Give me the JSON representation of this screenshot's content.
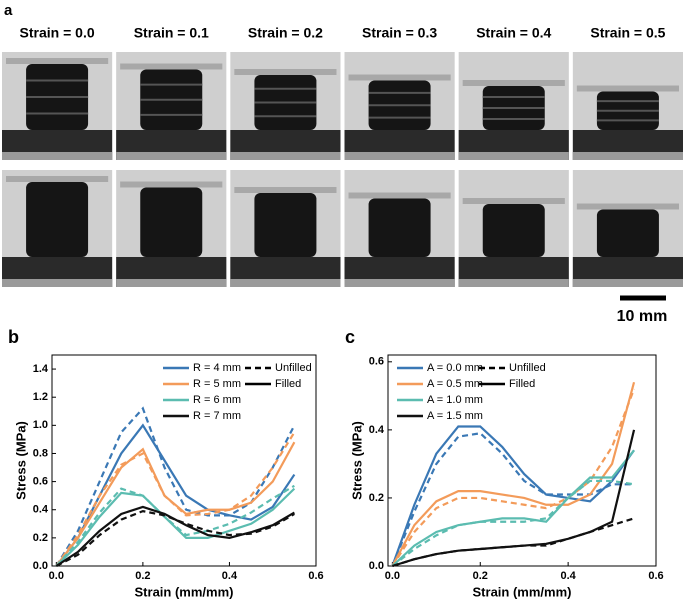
{
  "panel_a": {
    "label": "a",
    "strain_labels": [
      "Strain = 0.0",
      "Strain = 0.1",
      "Strain = 0.2",
      "Strain = 0.3",
      "Strain = 0.4",
      "Strain = 0.5"
    ],
    "scale_bar": "10 mm"
  },
  "chart_data": [
    {
      "type": "line",
      "panel_label": "b",
      "x_label": "Strain (mm/mm)",
      "y_label": "Stress (MPa)",
      "x": [
        0,
        0.05,
        0.1,
        0.15,
        0.2,
        0.25,
        0.3,
        0.35,
        0.4,
        0.45,
        0.5,
        0.55
      ],
      "xlim": [
        -0.01,
        0.6
      ],
      "ylim": [
        0,
        1.5
      ],
      "xticks": [
        {
          "value": 0,
          "label": "0.0"
        },
        0.2,
        0.4,
        0.6
      ],
      "yticks": [
        {
          "value": 0,
          "label": "0.0"
        },
        0.2,
        0.4,
        0.6,
        0.8,
        {
          "value": 1,
          "label": "1.0"
        },
        1.2,
        1.4
      ],
      "line_styles": [
        {
          "name": "Unfilled",
          "dashed": true
        },
        {
          "name": "Filled",
          "dashed": false
        }
      ],
      "series": [
        {
          "name": "R = 4 mm",
          "color": "#3a78b5",
          "values": [
            0,
            0.2,
            0.5,
            0.8,
            1.0,
            0.75,
            0.5,
            0.4,
            0.36,
            0.33,
            0.42,
            0.65
          ],
          "unfilled_values": [
            0,
            0.25,
            0.6,
            0.95,
            1.12,
            0.7,
            0.4,
            0.36,
            0.36,
            0.45,
            0.7,
            1.0
          ]
        },
        {
          "name": "R = 5 mm",
          "color": "#f39b5a",
          "values": [
            0,
            0.2,
            0.45,
            0.7,
            0.83,
            0.5,
            0.37,
            0.4,
            0.4,
            0.45,
            0.6,
            0.88
          ],
          "unfilled_values": [
            0,
            0.22,
            0.5,
            0.72,
            0.8,
            0.5,
            0.36,
            0.37,
            0.4,
            0.5,
            0.7,
            0.95
          ]
        },
        {
          "name": "R = 6 mm",
          "color": "#5bbcb0",
          "values": [
            0,
            0.15,
            0.35,
            0.52,
            0.5,
            0.35,
            0.2,
            0.2,
            0.25,
            0.3,
            0.4,
            0.55
          ],
          "unfilled_values": [
            0,
            0.17,
            0.38,
            0.55,
            0.5,
            0.35,
            0.22,
            0.25,
            0.3,
            0.38,
            0.48,
            0.57
          ]
        },
        {
          "name": "R = 7 mm",
          "color": "#111111",
          "values": [
            0,
            0.1,
            0.25,
            0.37,
            0.42,
            0.37,
            0.29,
            0.22,
            0.2,
            0.24,
            0.29,
            0.38
          ],
          "unfilled_values": [
            0,
            0.08,
            0.22,
            0.33,
            0.39,
            0.36,
            0.3,
            0.25,
            0.22,
            0.23,
            0.28,
            0.37
          ]
        }
      ]
    },
    {
      "type": "line",
      "panel_label": "c",
      "x_label": "Strain (mm/mm)",
      "y_label": "Stress (MPa)",
      "x": [
        0,
        0.05,
        0.1,
        0.15,
        0.2,
        0.25,
        0.3,
        0.35,
        0.4,
        0.45,
        0.5,
        0.55
      ],
      "xlim": [
        -0.01,
        0.6
      ],
      "ylim": [
        0,
        0.62
      ],
      "xticks": [
        {
          "value": 0,
          "label": "0.0"
        },
        0.2,
        0.4,
        0.6
      ],
      "yticks": [
        {
          "value": 0,
          "label": "0.0"
        },
        0.2,
        0.4,
        0.6
      ],
      "line_styles": [
        {
          "name": "Unfilled",
          "dashed": true
        },
        {
          "name": "Filled",
          "dashed": false
        }
      ],
      "series": [
        {
          "name": "A = 0.0 mm",
          "color": "#3a78b5",
          "values": [
            0,
            0.18,
            0.33,
            0.41,
            0.41,
            0.35,
            0.27,
            0.21,
            0.2,
            0.19,
            0.25,
            0.34
          ],
          "unfilled_values": [
            0,
            0.16,
            0.3,
            0.38,
            0.39,
            0.33,
            0.25,
            0.21,
            0.21,
            0.21,
            0.24,
            0.24
          ]
        },
        {
          "name": "A = 0.5 mm",
          "color": "#f39b5a",
          "values": [
            0,
            0.12,
            0.19,
            0.22,
            0.22,
            0.21,
            0.2,
            0.18,
            0.18,
            0.21,
            0.3,
            0.54
          ],
          "unfilled_values": [
            0,
            0.1,
            0.17,
            0.2,
            0.2,
            0.19,
            0.18,
            0.17,
            0.2,
            0.25,
            0.35,
            0.52
          ]
        },
        {
          "name": "A = 1.0 mm",
          "color": "#5bbcb0",
          "values": [
            0,
            0.06,
            0.1,
            0.12,
            0.13,
            0.14,
            0.14,
            0.13,
            0.2,
            0.26,
            0.26,
            0.34
          ],
          "unfilled_values": [
            0,
            0.05,
            0.09,
            0.12,
            0.13,
            0.13,
            0.13,
            0.14,
            0.2,
            0.25,
            0.25,
            0.24
          ]
        },
        {
          "name": "A = 1.5 mm",
          "color": "#111111",
          "values": [
            0,
            0.02,
            0.035,
            0.045,
            0.05,
            0.055,
            0.06,
            0.065,
            0.08,
            0.1,
            0.13,
            0.4
          ],
          "unfilled_values": [
            0,
            0.02,
            0.035,
            0.045,
            0.05,
            0.055,
            0.06,
            0.06,
            0.08,
            0.1,
            0.12,
            0.14
          ]
        }
      ]
    }
  ]
}
